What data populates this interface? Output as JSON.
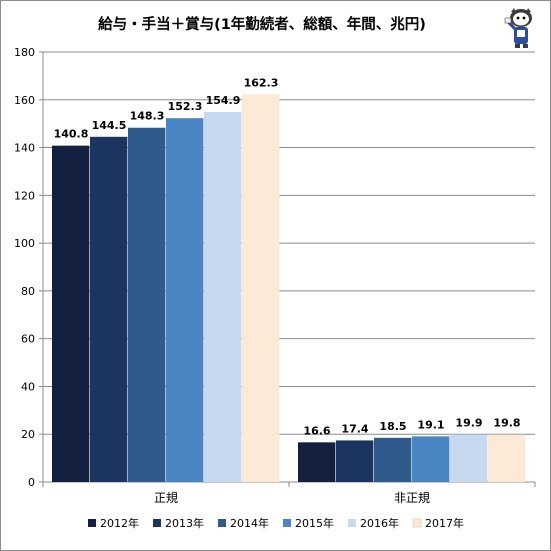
{
  "chart_data": {
    "type": "bar",
    "title": "給与・手当＋賞与(1年勤続者、総額、年間、兆円)",
    "categories": [
      "正規",
      "非正規"
    ],
    "series": [
      {
        "name": "2012年",
        "values": [
          140.8,
          16.6
        ],
        "color": "#142040"
      },
      {
        "name": "2013年",
        "values": [
          144.5,
          17.4
        ],
        "color": "#1b3560"
      },
      {
        "name": "2014年",
        "values": [
          148.3,
          18.5
        ],
        "color": "#2e5a8c"
      },
      {
        "name": "2015年",
        "values": [
          152.3,
          19.1
        ],
        "color": "#4a86c4"
      },
      {
        "name": "2016年",
        "values": [
          154.9,
          19.9
        ],
        "color": "#c6d9f0"
      },
      {
        "name": "2017年",
        "values": [
          162.3,
          19.8
        ],
        "color": "#fce9d6"
      }
    ],
    "ylim": [
      0,
      180
    ],
    "yticks": [
      0,
      20,
      40,
      60,
      80,
      100,
      120,
      140,
      160,
      180
    ],
    "grid": true,
    "legend": "bottom",
    "data_labels": true,
    "xlabel": "",
    "ylabel": ""
  },
  "logo": {
    "name": "cartoon-character-logo"
  }
}
